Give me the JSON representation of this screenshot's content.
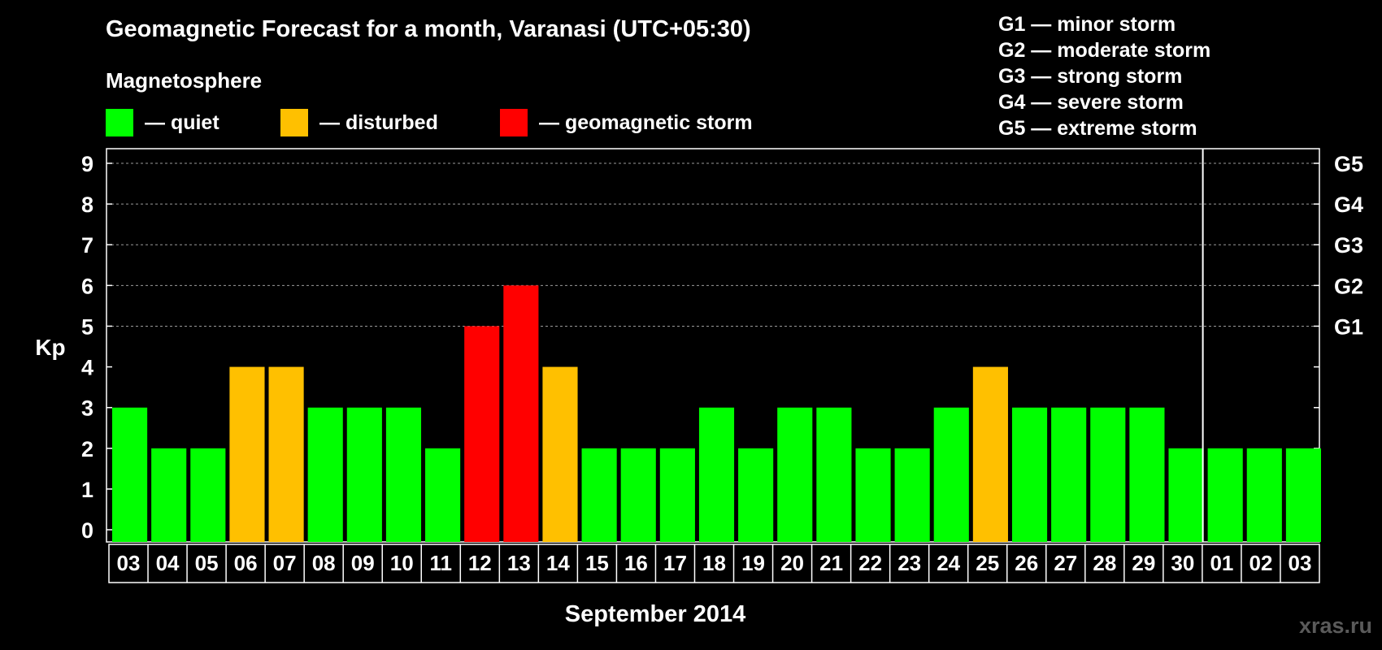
{
  "title": "Geomagnetic Forecast for a month, Varanasi (UTC+05:30)",
  "magnetosphere": {
    "heading": "Magnetosphere",
    "legend": [
      {
        "label": "— quiet",
        "color": "#00ff00"
      },
      {
        "label": "— disturbed",
        "color": "#ffc000"
      },
      {
        "label": "— geomagnetic storm",
        "color": "#ff0000"
      }
    ]
  },
  "g_levels": [
    "G1 — minor storm",
    "G2 — moderate storm",
    "G3 — strong storm",
    "G4 — severe storm",
    "G5 — extreme storm"
  ],
  "watermark": "xras.ru",
  "colors": {
    "quiet": "#00ff00",
    "disturbed": "#ffc000",
    "storm": "#ff0000"
  },
  "chart_data": {
    "type": "bar",
    "title": "Geomagnetic Forecast for a month, Varanasi (UTC+05:30)",
    "xlabel": "September 2014",
    "ylabel": "Kp",
    "ylim": [
      0,
      9
    ],
    "yticks": [
      "0",
      "1",
      "2",
      "3",
      "4",
      "5",
      "6",
      "7",
      "8",
      "9"
    ],
    "right_ticks": [
      {
        "kp": 5,
        "label": "G1"
      },
      {
        "kp": 6,
        "label": "G2"
      },
      {
        "kp": 7,
        "label": "G3"
      },
      {
        "kp": 8,
        "label": "G4"
      },
      {
        "kp": 9,
        "label": "G5"
      }
    ],
    "grid": "dashed horizontal at Kp 5-9",
    "month_divider_after": "30",
    "categories": [
      "03",
      "04",
      "05",
      "06",
      "07",
      "08",
      "09",
      "10",
      "11",
      "12",
      "13",
      "14",
      "15",
      "16",
      "17",
      "18",
      "19",
      "20",
      "21",
      "22",
      "23",
      "24",
      "25",
      "26",
      "27",
      "28",
      "29",
      "30",
      "01",
      "02",
      "03"
    ],
    "values": [
      3,
      2,
      2,
      4,
      4,
      3,
      3,
      3,
      2,
      5,
      6,
      4,
      2,
      2,
      2,
      3,
      2,
      3,
      3,
      2,
      2,
      3,
      4,
      3,
      3,
      3,
      3,
      2,
      2,
      2,
      2
    ],
    "status": [
      "quiet",
      "quiet",
      "quiet",
      "disturbed",
      "disturbed",
      "quiet",
      "quiet",
      "quiet",
      "quiet",
      "storm",
      "storm",
      "disturbed",
      "quiet",
      "quiet",
      "quiet",
      "quiet",
      "quiet",
      "quiet",
      "quiet",
      "quiet",
      "quiet",
      "quiet",
      "disturbed",
      "quiet",
      "quiet",
      "quiet",
      "quiet",
      "quiet",
      "quiet",
      "quiet",
      "quiet"
    ]
  }
}
